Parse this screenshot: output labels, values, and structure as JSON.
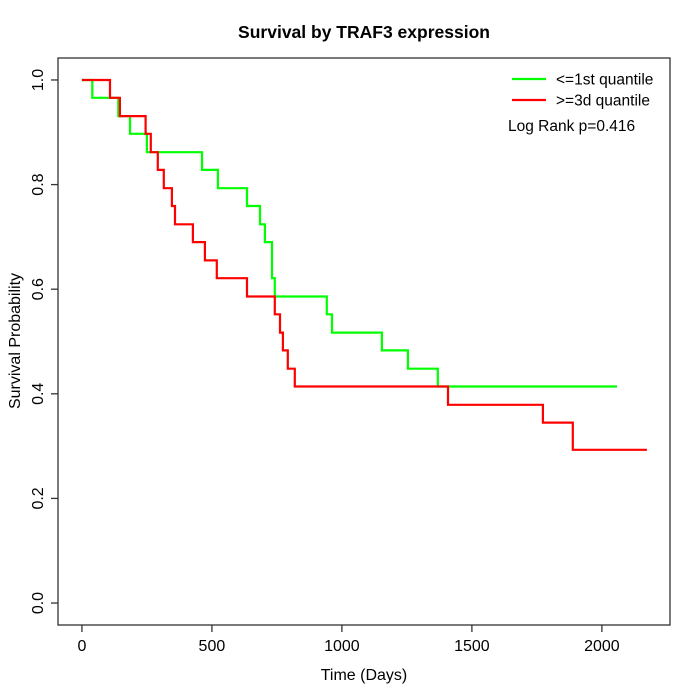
{
  "chart_data": {
    "type": "line",
    "subtype": "kaplan-meier-step",
    "title": "Survival by TRAF3 expression",
    "xlabel": "Time (Days)",
    "ylabel": "Survival Probability",
    "xlim": [
      -92,
      2262
    ],
    "ylim": [
      -0.042,
      1.042
    ],
    "xticks": [
      0,
      500,
      1000,
      1500,
      2000
    ],
    "xtick_labels": [
      "0",
      "500",
      "1000",
      "1500",
      "2000"
    ],
    "yticks": [
      0.0,
      0.2,
      0.4,
      0.6,
      0.8,
      1.0
    ],
    "ytick_labels": [
      "0.0",
      "0.2",
      "0.4",
      "0.6",
      "0.8",
      "1.0"
    ],
    "grid": false,
    "axis_color": "#333333",
    "legend_position": "top-right-inside",
    "legend": [
      {
        "label": "<=1st quantile",
        "color": "#00FF00"
      },
      {
        "label": ">=3d quantile",
        "color": "#FF0000"
      }
    ],
    "annotation": "Log Rank p=0.416",
    "series": [
      {
        "name": "<=1st quantile",
        "color": "#00FF00",
        "points": [
          [
            0,
            1.0
          ],
          [
            40,
            0.966
          ],
          [
            140,
            0.931
          ],
          [
            185,
            0.897
          ],
          [
            250,
            0.862
          ],
          [
            462,
            0.828
          ],
          [
            523,
            0.793
          ],
          [
            635,
            0.759
          ],
          [
            685,
            0.724
          ],
          [
            704,
            0.69
          ],
          [
            731,
            0.621
          ],
          [
            742,
            0.586
          ],
          [
            942,
            0.552
          ],
          [
            962,
            0.517
          ],
          [
            1154,
            0.483
          ],
          [
            1254,
            0.448
          ],
          [
            1369,
            0.414
          ],
          [
            2058,
            0.414
          ]
        ]
      },
      {
        "name": ">=3d quantile",
        "color": "#FF0000",
        "points": [
          [
            0,
            1.0
          ],
          [
            108,
            0.966
          ],
          [
            146,
            0.931
          ],
          [
            245,
            0.897
          ],
          [
            265,
            0.862
          ],
          [
            292,
            0.828
          ],
          [
            315,
            0.793
          ],
          [
            346,
            0.759
          ],
          [
            358,
            0.724
          ],
          [
            427,
            0.69
          ],
          [
            473,
            0.655
          ],
          [
            519,
            0.621
          ],
          [
            635,
            0.586
          ],
          [
            742,
            0.552
          ],
          [
            762,
            0.517
          ],
          [
            773,
            0.483
          ],
          [
            792,
            0.448
          ],
          [
            819,
            0.414
          ],
          [
            1408,
            0.379
          ],
          [
            1773,
            0.345
          ],
          [
            1888,
            0.293
          ],
          [
            2173,
            0.293
          ]
        ]
      }
    ]
  }
}
